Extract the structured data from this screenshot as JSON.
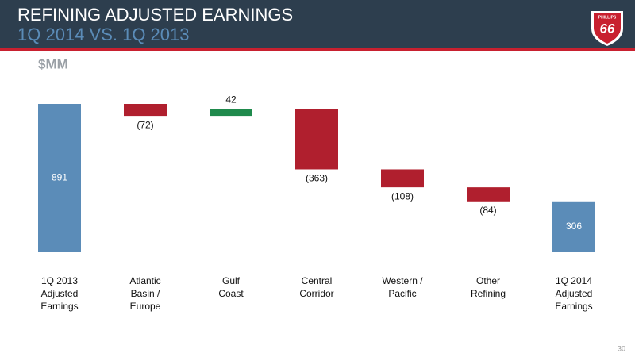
{
  "chart_data": {
    "type": "waterfall",
    "title": "REFINING ADJUSTED EARNINGS",
    "subtitle": "1Q 2014 VS. 1Q 2013",
    "unit_label": "$MM",
    "categories": [
      [
        "1Q 2013",
        "Adjusted",
        "Earnings"
      ],
      [
        "Atlantic",
        "Basin /",
        "Europe"
      ],
      [
        "Gulf",
        "Coast"
      ],
      [
        "Central",
        "Corridor"
      ],
      [
        "Western /",
        "Pacific"
      ],
      [
        "Other",
        "Refining"
      ],
      [
        "1Q 2014",
        "Adjusted",
        "Earnings"
      ]
    ],
    "values": [
      891,
      -72,
      42,
      -363,
      -108,
      -84,
      306
    ],
    "value_labels": [
      "891",
      "(72)",
      "42",
      "(363)",
      "(108)",
      "(84)",
      "306"
    ],
    "colors": [
      "#5b8cb8",
      "#b01f2e",
      "#1f8a4c",
      "#b01f2e",
      "#b01f2e",
      "#b01f2e",
      "#5b8cb8"
    ]
  },
  "logo": {
    "name": "PHILLIPS",
    "number": "66"
  },
  "page_number": "30"
}
